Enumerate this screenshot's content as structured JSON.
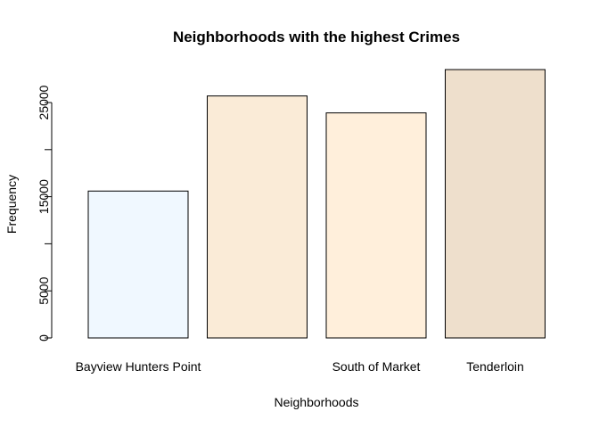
{
  "chart_data": {
    "type": "bar",
    "title": "Neighborhoods with the highest Crimes",
    "xlabel": "Neighborhoods",
    "ylabel": "Frequency",
    "categories": [
      "Bayview Hunters Point",
      "",
      "South of Market",
      "Tenderloin"
    ],
    "values": [
      15600,
      25700,
      23900,
      28500
    ],
    "colors": [
      "#F0F8FF",
      "#FAEBD7",
      "#FFEFDB",
      "#EEDFCC"
    ],
    "ylim": [
      0,
      28500
    ],
    "yticks": [
      0,
      5000,
      10000,
      15000,
      20000,
      25000
    ],
    "ytick_labels": [
      "0",
      "5000",
      "",
      "15000",
      "",
      "25000"
    ],
    "grid": false,
    "legend": "none"
  }
}
